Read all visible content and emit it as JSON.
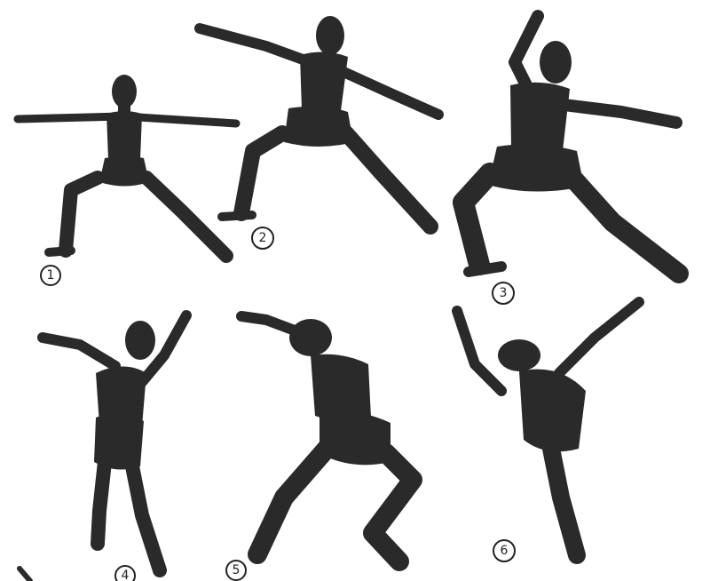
{
  "colors": {
    "background": "#ffffff",
    "silhouette": "#2a2a2a",
    "ink": "#222222"
  },
  "figures": [
    {
      "id": "fig1",
      "label": "1"
    },
    {
      "id": "fig2",
      "label": "2"
    },
    {
      "id": "fig3",
      "label": "3"
    },
    {
      "id": "fig4",
      "label": "4"
    },
    {
      "id": "fig5",
      "label": "5"
    },
    {
      "id": "fig6",
      "label": "6"
    }
  ]
}
